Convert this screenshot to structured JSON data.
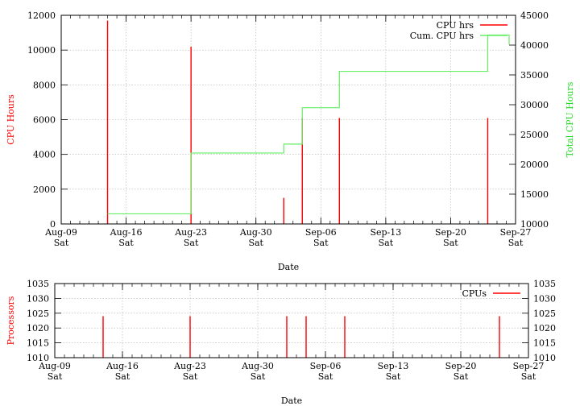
{
  "chart_data": [
    {
      "type": "bar",
      "xlabel": "Date",
      "ylabel": "CPU Hours",
      "y2label": "Total CPU Hours",
      "ylim": [
        0,
        12000
      ],
      "y2lim": [
        10000,
        45000
      ],
      "yticks": [
        0,
        2000,
        4000,
        6000,
        8000,
        10000,
        12000
      ],
      "y2ticks": [
        10000,
        15000,
        20000,
        25000,
        30000,
        35000,
        40000,
        45000
      ],
      "xlim": [
        "2008-08-09",
        "2008-09-27"
      ],
      "xticks": [
        {
          "date": "2008-08-09",
          "line1": "Aug-09",
          "line2": "Sat"
        },
        {
          "date": "2008-08-16",
          "line1": "Aug-16",
          "line2": "Sat"
        },
        {
          "date": "2008-08-23",
          "line1": "Aug-23",
          "line2": "Sat"
        },
        {
          "date": "2008-08-30",
          "line1": "Aug-30",
          "line2": "Sat"
        },
        {
          "date": "2008-09-06",
          "line1": "Sep-06",
          "line2": "Sat"
        },
        {
          "date": "2008-09-13",
          "line1": "Sep-13",
          "line2": "Sat"
        },
        {
          "date": "2008-09-20",
          "line1": "Sep-20",
          "line2": "Sat"
        },
        {
          "date": "2008-09-27",
          "line1": "Sep-27",
          "line2": "Sat"
        }
      ],
      "grid": true,
      "legend_position": "top-right",
      "series": [
        {
          "name": "CPU hrs",
          "style": "impulses",
          "axis": "y",
          "color": "#ff0000",
          "points": [
            {
              "x": "2008-08-14",
              "y": 11700
            },
            {
              "x": "2008-08-23",
              "y": 10200
            },
            {
              "x": "2008-09-02",
              "y": 1500
            },
            {
              "x": "2008-09-04",
              "y": 6100
            },
            {
              "x": "2008-09-08",
              "y": 6100
            },
            {
              "x": "2008-09-24",
              "y": 6100
            }
          ]
        },
        {
          "name": "Cum. CPU hrs",
          "style": "steps",
          "axis": "y2",
          "color": "#66ee66",
          "points": [
            {
              "x": "2008-08-14",
              "y": 11700
            },
            {
              "x": "2008-08-23",
              "y": 21900
            },
            {
              "x": "2008-09-02",
              "y": 23400
            },
            {
              "x": "2008-09-04",
              "y": 29500
            },
            {
              "x": "2008-09-08",
              "y": 35600
            },
            {
              "x": "2008-09-24",
              "y": 41700
            }
          ]
        }
      ]
    },
    {
      "type": "bar",
      "xlabel": "Date",
      "ylabel": "Processors",
      "ylim": [
        1010,
        1035
      ],
      "yticks": [
        1010,
        1015,
        1020,
        1025,
        1030,
        1035
      ],
      "y2ticks": [
        1010,
        1015,
        1020,
        1025,
        1030,
        1035
      ],
      "xlim": [
        "2008-08-09",
        "2008-09-27"
      ],
      "grid": true,
      "legend_position": "top-right",
      "series": [
        {
          "name": "CPUs",
          "style": "impulses",
          "color": "#ff0000",
          "points": [
            {
              "x": "2008-08-14",
              "y": 1024
            },
            {
              "x": "2008-08-23",
              "y": 1024
            },
            {
              "x": "2008-09-02",
              "y": 1024
            },
            {
              "x": "2008-09-04",
              "y": 1024
            },
            {
              "x": "2008-09-08",
              "y": 1024
            },
            {
              "x": "2008-09-24",
              "y": 1024
            }
          ]
        }
      ]
    }
  ]
}
